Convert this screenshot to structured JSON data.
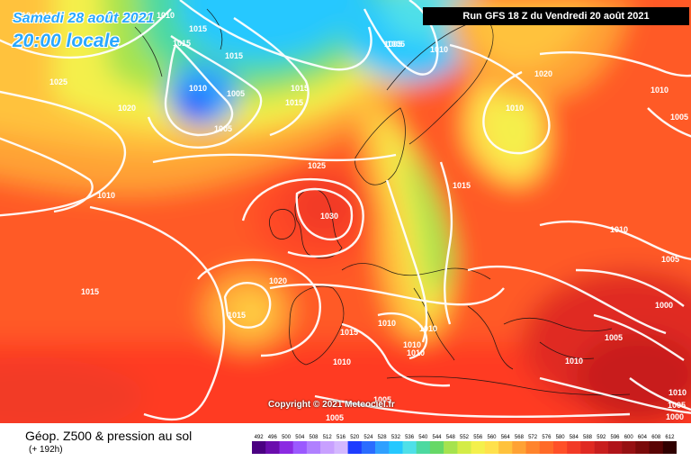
{
  "header": {
    "date": "Samedi 28 août 2021",
    "time": "20:00 locale",
    "run": "Run GFS 18 Z du Vendredi 20 août 2021"
  },
  "footer": {
    "product": "Géop. Z500 & pression au sol",
    "lead": "(+ 192h)",
    "copyright": "Copyright © 2021 Meteociel.fr"
  },
  "legend": {
    "values": [
      "492",
      "496",
      "500",
      "504",
      "508",
      "512",
      "516",
      "520",
      "524",
      "528",
      "532",
      "536",
      "540",
      "544",
      "548",
      "552",
      "556",
      "560",
      "564",
      "568",
      "572",
      "576",
      "580",
      "584",
      "588",
      "592",
      "596",
      "600",
      "604",
      "608",
      "612"
    ],
    "colors": [
      "#4b0082",
      "#6a0dad",
      "#8b2be2",
      "#9b59ff",
      "#b080ff",
      "#c8a0ff",
      "#d4b8ff",
      "#1e3cff",
      "#2a6cff",
      "#2fa0ff",
      "#25c8ff",
      "#4fe0e8",
      "#4cd9a0",
      "#66d866",
      "#a6e34e",
      "#d4ec46",
      "#f4f04c",
      "#ffe14c",
      "#ffc23c",
      "#ffa234",
      "#ff842c",
      "#ff6a28",
      "#ff5028",
      "#f23a26",
      "#e02a22",
      "#c81e1e",
      "#b0141a",
      "#961012",
      "#7a0a0a",
      "#5a0404",
      "#300000"
    ]
  },
  "isobar_labels": [
    "1010",
    "1010",
    "1010",
    "1015",
    "1015",
    "1015",
    "1025",
    "1020",
    "1010",
    "1005",
    "1005",
    "1005",
    "1015",
    "1015",
    "1005",
    "1010",
    "1020",
    "1010",
    "1010",
    "1010",
    "1005",
    "1025",
    "1015",
    "1030",
    "1010",
    "1015",
    "1020",
    "1015",
    "1015",
    "1010",
    "1010",
    "1010",
    "1010",
    "1010",
    "1005",
    "1000",
    "1005",
    "1005",
    "1010",
    "1005",
    "1010",
    "1005",
    "1000"
  ]
}
